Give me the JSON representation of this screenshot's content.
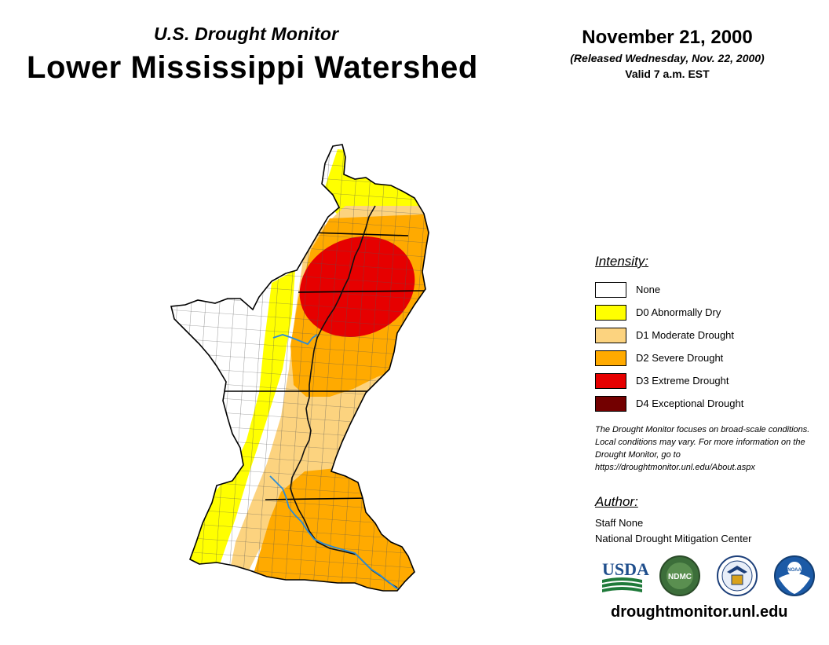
{
  "header": {
    "subtitle": "U.S. Drought Monitor",
    "title": "Lower Mississippi Watershed",
    "date": "November 21, 2000",
    "released": "(Released Wednesday, Nov. 22, 2000)",
    "valid": "Valid 7 a.m. EST"
  },
  "map": {
    "region": "Lower Mississippi Watershed",
    "river_color": "#2b8cd6",
    "border_color": "#000000",
    "drought_areas": [
      {
        "category": "D0",
        "location": "northern tip of the watershed (southern Missouri bootheel area)"
      },
      {
        "category": "D0",
        "location": "western Arkansas band and western Louisiana"
      },
      {
        "category": "D1",
        "location": "central Arkansas, western Mississippi valley and southwestern Louisiana"
      },
      {
        "category": "D2",
        "location": "eastern Arkansas, western Tennessee/Mississippi and southern Louisiana"
      },
      {
        "category": "D3",
        "location": "northeastern Arkansas, southeastern Missouri and western Tennessee"
      }
    ]
  },
  "legend": {
    "heading": "Intensity:",
    "items": [
      {
        "code": "None",
        "label": "None",
        "color": "#ffffff"
      },
      {
        "code": "D0",
        "label": "D0 Abnormally Dry",
        "color": "#ffff00"
      },
      {
        "code": "D1",
        "label": "D1 Moderate Drought",
        "color": "#fcd37f"
      },
      {
        "code": "D2",
        "label": "D2 Severe Drought",
        "color": "#ffaa00"
      },
      {
        "code": "D3",
        "label": "D3 Extreme Drought",
        "color": "#e60000"
      },
      {
        "code": "D4",
        "label": "D4 Exceptional Drought",
        "color": "#730000"
      }
    ]
  },
  "note": "The Drought Monitor focuses on broad-scale conditions. Local conditions may vary. For more information on the Drought Monitor, go to https://droughtmonitor.unl.edu/About.aspx",
  "author": {
    "heading": "Author:",
    "name": "Staff None",
    "organization": "National Drought Mitigation Center"
  },
  "logos": {
    "usda": "USDA",
    "ndmc": "NDMC",
    "noaa": "NOAA"
  },
  "footer": {
    "url": "droughtmonitor.unl.edu"
  }
}
